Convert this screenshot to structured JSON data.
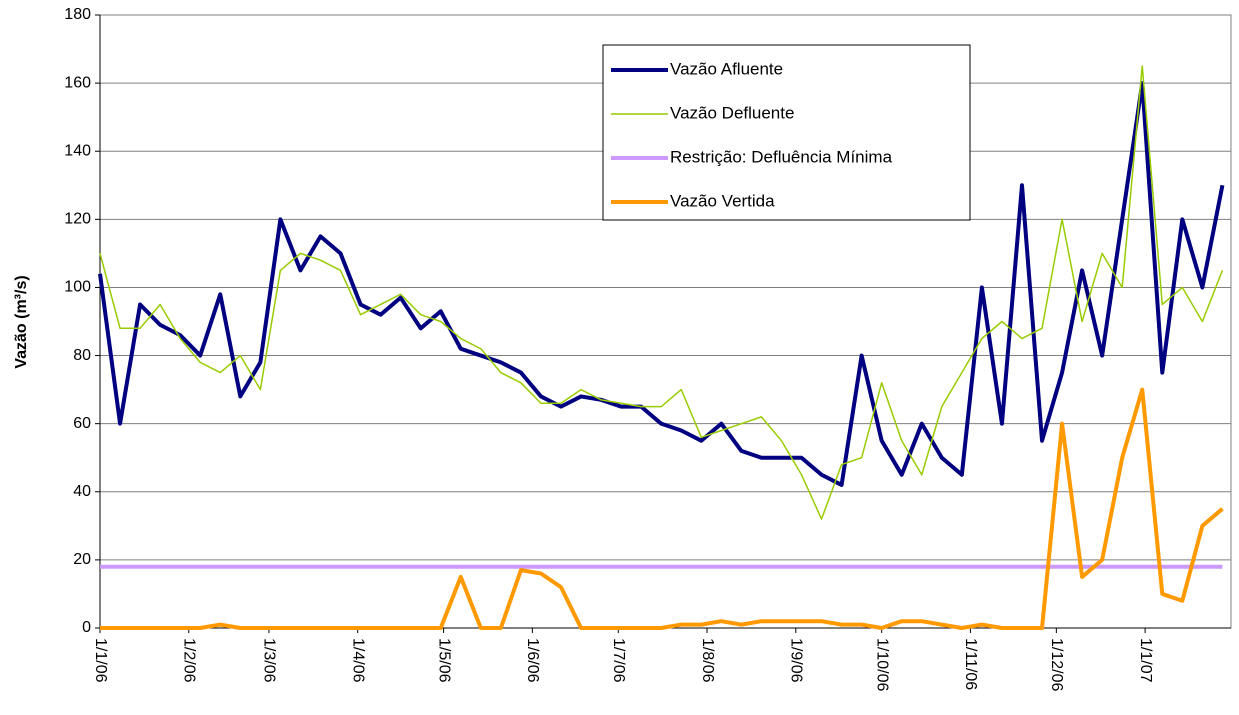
{
  "chart_data": {
    "type": "line",
    "y_label": "Vazão (m³/s)",
    "x": [
      "1/1/06",
      "8/1/06",
      "15/1/06",
      "22/1/06",
      "29/1/06",
      "5/2/06",
      "12/2/06",
      "19/2/06",
      "26/2/06",
      "5/3/06",
      "12/3/06",
      "19/3/06",
      "26/3/06",
      "2/4/06",
      "9/4/06",
      "16/4/06",
      "23/4/06",
      "30/4/06",
      "7/5/06",
      "14/5/06",
      "21/5/06",
      "28/5/06",
      "4/6/06",
      "11/6/06",
      "18/6/06",
      "25/6/06",
      "2/7/06",
      "9/7/06",
      "16/7/06",
      "23/7/06",
      "30/7/06",
      "6/8/06",
      "13/8/06",
      "20/8/06",
      "27/8/06",
      "3/9/06",
      "10/9/06",
      "17/9/06",
      "24/9/06",
      "1/10/06",
      "8/10/06",
      "15/10/06",
      "22/10/06",
      "29/10/06",
      "5/11/06",
      "12/11/06",
      "19/11/06",
      "26/11/06",
      "3/12/06",
      "10/12/06",
      "17/12/06",
      "24/12/06",
      "31/12/06",
      "7/1/07",
      "14/1/07",
      "21/1/07",
      "28/1/07"
    ],
    "series": [
      {
        "name": "Vazão Afluente",
        "color": "#000080",
        "width": 4,
        "values": [
          104,
          60,
          95,
          89,
          86,
          80,
          98,
          68,
          78,
          120,
          105,
          115,
          110,
          95,
          92,
          97,
          88,
          93,
          82,
          80,
          78,
          75,
          68,
          65,
          68,
          67,
          65,
          65,
          60,
          58,
          55,
          60,
          52,
          50,
          50,
          50,
          45,
          42,
          80,
          55,
          45,
          60,
          50,
          45,
          100,
          60,
          130,
          55,
          75,
          105,
          80,
          120,
          160,
          75,
          120,
          100,
          130
        ]
      },
      {
        "name": "Vazão Defluente",
        "color": "#99cc00",
        "width": 1.5,
        "values": [
          110,
          88,
          88,
          95,
          85,
          78,
          75,
          80,
          70,
          105,
          110,
          108,
          105,
          92,
          95,
          98,
          92,
          90,
          85,
          82,
          75,
          72,
          66,
          66,
          70,
          67,
          66,
          65,
          65,
          70,
          56,
          58,
          60,
          62,
          55,
          45,
          32,
          48,
          50,
          72,
          55,
          45,
          65,
          75,
          85,
          90,
          85,
          88,
          120,
          90,
          110,
          100,
          165,
          95,
          100,
          90,
          105
        ]
      },
      {
        "name": "Restrição: Defluência Mínima",
        "color": "#cc99ff",
        "width": 4,
        "values": [
          18,
          18,
          18,
          18,
          18,
          18,
          18,
          18,
          18,
          18,
          18,
          18,
          18,
          18,
          18,
          18,
          18,
          18,
          18,
          18,
          18,
          18,
          18,
          18,
          18,
          18,
          18,
          18,
          18,
          18,
          18,
          18,
          18,
          18,
          18,
          18,
          18,
          18,
          18,
          18,
          18,
          18,
          18,
          18,
          18,
          18,
          18,
          18,
          18,
          18,
          18,
          18,
          18,
          18,
          18,
          18,
          18
        ]
      },
      {
        "name": "Vazão Vertida",
        "color": "#ff9900",
        "width": 4,
        "values": [
          0,
          0,
          0,
          0,
          0,
          0,
          1,
          0,
          0,
          0,
          0,
          0,
          0,
          0,
          0,
          0,
          0,
          0,
          15,
          0,
          0,
          17,
          16,
          12,
          0,
          0,
          0,
          0,
          0,
          1,
          1,
          2,
          1,
          2,
          2,
          2,
          2,
          1,
          1,
          0,
          2,
          2,
          1,
          0,
          1,
          0,
          0,
          0,
          60,
          15,
          20,
          50,
          70,
          10,
          8,
          30,
          35
        ]
      }
    ],
    "xticks": [
      "1/1/06",
      "1/2/06",
      "1/3/06",
      "1/4/06",
      "1/5/06",
      "1/6/06",
      "1/7/06",
      "1/8/06",
      "1/9/06",
      "1/10/06",
      "1/11/06",
      "1/12/06",
      "1/1/07"
    ],
    "xlim": [
      "1/1/06",
      "31/1/07"
    ],
    "ylim": [
      0,
      180
    ],
    "yticks": [
      0,
      20,
      40,
      60,
      80,
      100,
      120,
      140,
      160,
      180
    ],
    "grid": true
  }
}
